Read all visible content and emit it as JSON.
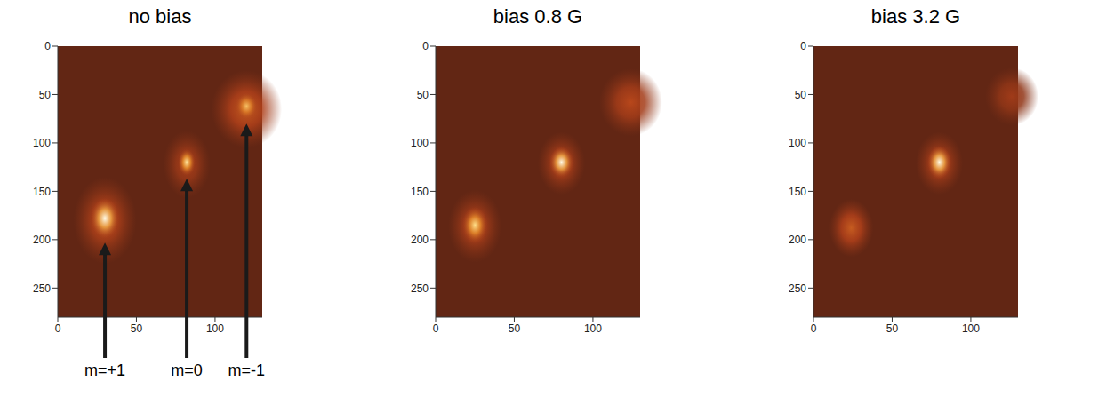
{
  "chart_data": [
    {
      "type": "heatmap",
      "title": "no bias",
      "color": "#622614",
      "xlim": [
        0,
        130
      ],
      "ylim": [
        0,
        280
      ],
      "xticks": [
        0,
        50,
        100
      ],
      "yticks": [
        0,
        50,
        100,
        150,
        200,
        250
      ],
      "spots": [
        {
          "x": 30,
          "y": 180,
          "width": 40,
          "height": 90,
          "intensity": 0.45
        },
        {
          "x": 30,
          "y": 178,
          "width": 18,
          "height": 42,
          "intensity": 1.0
        },
        {
          "x": 82,
          "y": 122,
          "width": 30,
          "height": 70,
          "intensity": 0.35
        },
        {
          "x": 82,
          "y": 120,
          "width": 11,
          "height": 28,
          "intensity": 0.92
        },
        {
          "x": 120,
          "y": 65,
          "width": 45,
          "height": 80,
          "intensity": 0.5
        },
        {
          "x": 120,
          "y": 62,
          "width": 14,
          "height": 28,
          "intensity": 0.82
        }
      ],
      "annotations": [
        {
          "text": "m=+1",
          "x": 30,
          "y": 203
        },
        {
          "text": "m=0",
          "x": 82,
          "y": 137
        },
        {
          "text": "m=-1",
          "x": 120,
          "y": 80
        }
      ]
    },
    {
      "type": "heatmap",
      "title": "bias 0.8 G",
      "color": "#622614",
      "xlim": [
        0,
        130
      ],
      "ylim": [
        0,
        280
      ],
      "xticks": [
        0,
        50,
        100
      ],
      "yticks": [
        0,
        50,
        100,
        150,
        200,
        250
      ],
      "spots": [
        {
          "x": 25,
          "y": 186,
          "width": 34,
          "height": 75,
          "intensity": 0.4
        },
        {
          "x": 25,
          "y": 185,
          "width": 16,
          "height": 38,
          "intensity": 0.9
        },
        {
          "x": 80,
          "y": 121,
          "width": 30,
          "height": 65,
          "intensity": 0.4
        },
        {
          "x": 80,
          "y": 120,
          "width": 15,
          "height": 32,
          "intensity": 1.0
        },
        {
          "x": 124,
          "y": 58,
          "width": 40,
          "height": 70,
          "intensity": 0.42
        }
      ]
    },
    {
      "type": "heatmap",
      "title": "bias 3.2 G",
      "color": "#622614",
      "xlim": [
        0,
        130
      ],
      "ylim": [
        0,
        280
      ],
      "xticks": [
        0,
        50,
        100
      ],
      "yticks": [
        0,
        50,
        100,
        150,
        200,
        250
      ],
      "spots": [
        {
          "x": 24,
          "y": 188,
          "width": 28,
          "height": 60,
          "intensity": 0.5
        },
        {
          "x": 80,
          "y": 121,
          "width": 30,
          "height": 65,
          "intensity": 0.4
        },
        {
          "x": 80,
          "y": 120,
          "width": 15,
          "height": 34,
          "intensity": 1.0
        },
        {
          "x": 126,
          "y": 52,
          "width": 34,
          "height": 60,
          "intensity": 0.3
        }
      ]
    }
  ]
}
